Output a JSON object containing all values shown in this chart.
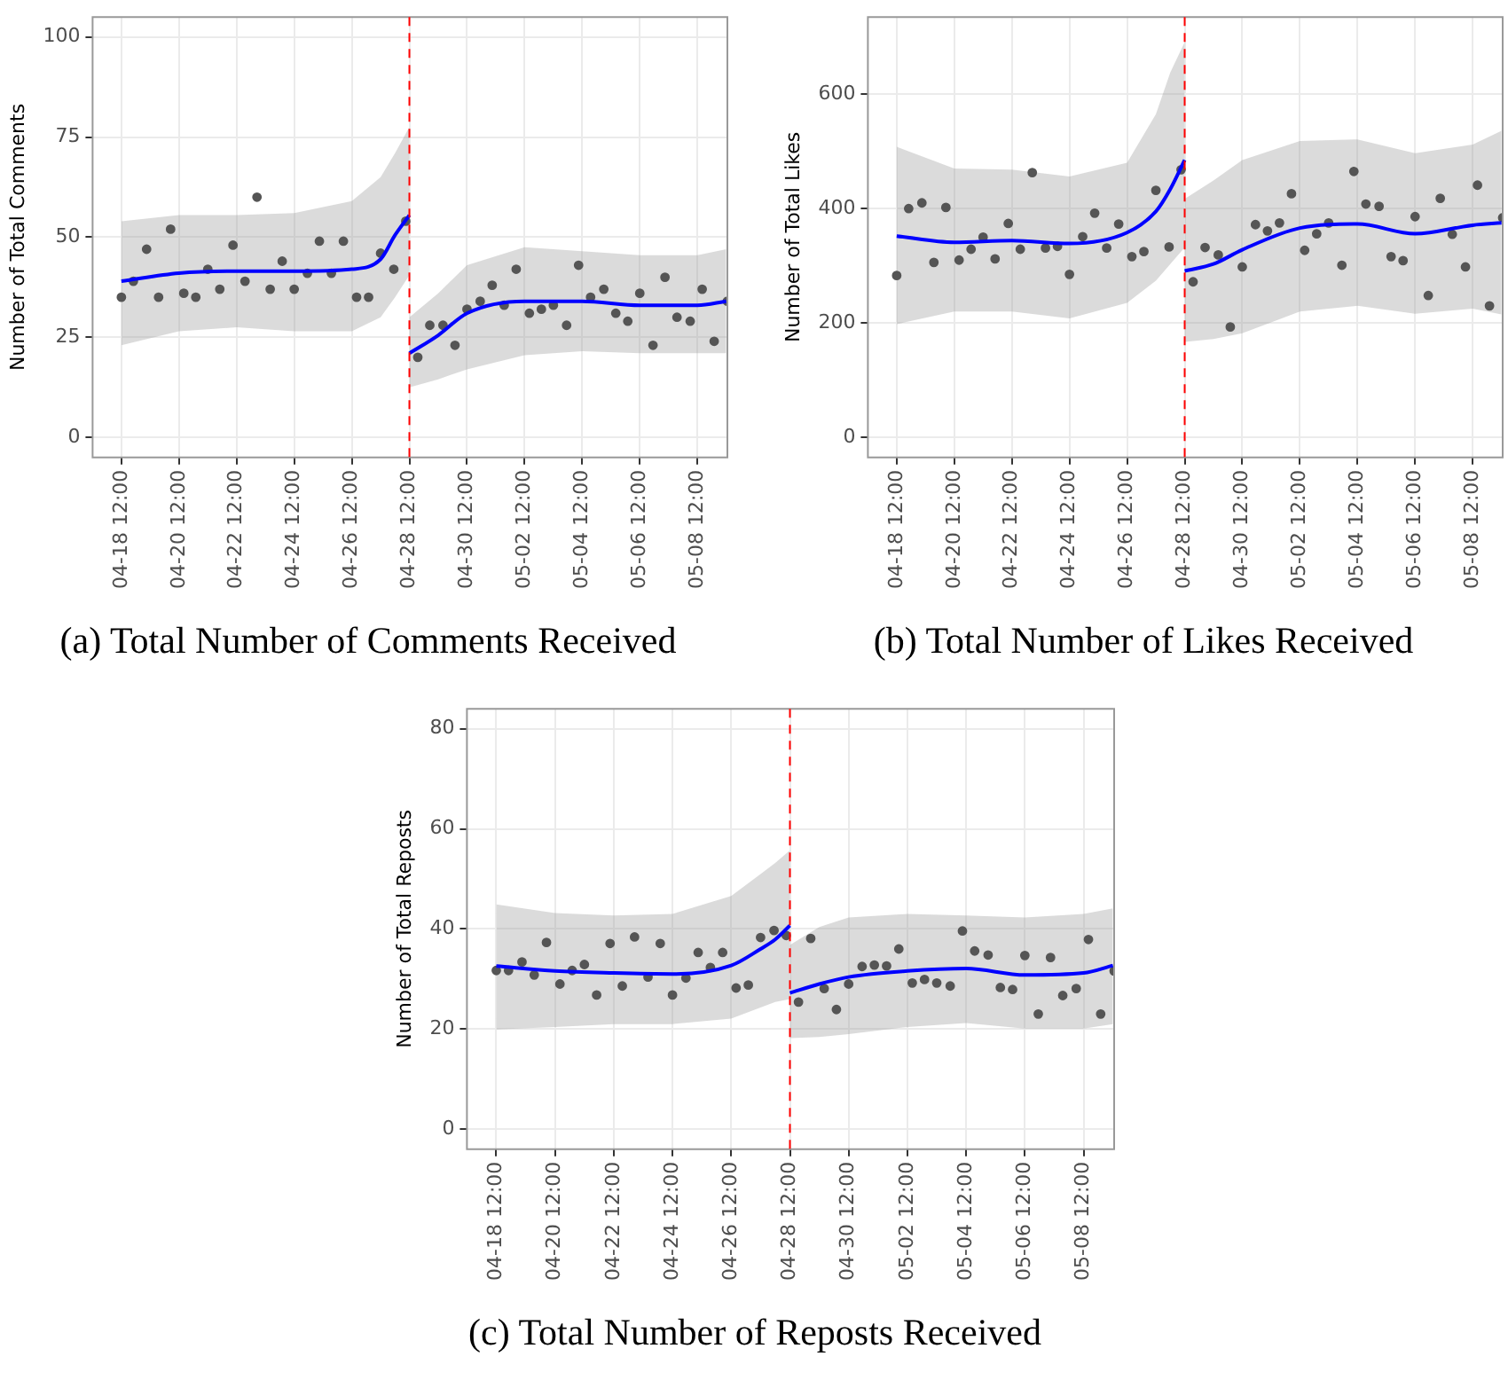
{
  "chart_data": [
    {
      "type": "scatter",
      "title": "(a) Total Number of Comments Received",
      "ylabel": "Number of Total Comments",
      "x": [
        "--04-18T12:00",
        "--04-18T22:00",
        "--04-19T09:00",
        "--04-19T19:00",
        "--04-20T05:00",
        "--04-20T16:00",
        "--04-21T02:00",
        "--04-21T12:00",
        "--04-21T22:00",
        "--04-22T09:00",
        "--04-22T19:00",
        "--04-23T05:00",
        "--04-23T16:00",
        "--04-24T02:00",
        "--04-24T12:00",
        "--04-24T23:00",
        "--04-25T09:00",
        "--04-25T19:00",
        "--04-26T05:00",
        "--04-26T16:00",
        "--04-27T02:00",
        "--04-27T12:00",
        "--04-27T23:00",
        "--04-28T09:00",
        "--04-28T19:00",
        "--04-29T05:00",
        "--04-29T16:00",
        "--04-30T02:00",
        "--04-30T12:00",
        "--04-30T23:00",
        "--05-01T09:00",
        "--05-01T19:00",
        "--05-02T05:00",
        "--05-02T16:00",
        "--05-03T02:00",
        "--05-03T12:00",
        "--05-03T23:00",
        "--05-04T09:00",
        "--05-04T19:00",
        "--05-05T06:00",
        "--05-05T16:00",
        "--05-06T02:00",
        "--05-06T12:00",
        "--05-06T23:00",
        "--05-07T09:00",
        "--05-07T19:00",
        "--05-08T06:00",
        "--05-08T16:00",
        "--05-09T02:00",
        "--05-09T13:00"
      ],
      "series": [
        {
          "color": "#555555",
          "marker": "circle",
          "values": [
            35,
            39,
            47,
            35,
            52,
            36,
            35,
            42,
            37,
            48,
            39,
            60,
            37,
            44,
            37,
            41,
            49,
            41,
            49,
            35,
            35,
            46,
            42,
            54,
            20,
            28,
            28,
            23,
            32,
            34,
            38,
            33,
            42,
            31,
            32,
            33,
            28,
            43,
            35,
            37,
            31,
            29,
            36,
            23,
            40,
            30,
            29,
            37,
            24,
            34
          ]
        },
        {
          "type": "line",
          "color": "#0000ff",
          "marker": "none",
          "x": [
            "--04-18T12:00",
            "--04-20T12:00",
            "--04-22T12:00",
            "--04-24T12:00",
            "--04-26T12:00",
            "--04-27T12:00",
            "--04-28T00:00",
            "--04-28T12:00"
          ],
          "values": [
            39,
            41,
            41.5,
            41.5,
            42,
            44.5,
            50.5,
            55.5
          ],
          "lower": [
            23,
            26.5,
            27.5,
            26.5,
            26.5,
            30,
            35,
            40.5
          ],
          "upper": [
            54,
            55.5,
            55.5,
            56,
            59,
            65,
            71,
            77.5
          ]
        },
        {
          "type": "line",
          "color": "#0000ff",
          "marker": "none",
          "x": [
            "--04-28T12:00",
            "--04-29T12:00",
            "--04-30T12:00",
            "--05-02T12:00",
            "--05-04T12:00",
            "--05-06T12:00",
            "--05-08T12:00",
            "--05-09T12:00"
          ],
          "values": [
            21,
            25.5,
            31,
            34,
            34,
            33,
            33,
            34
          ],
          "lower": [
            12.5,
            14.5,
            17,
            20.5,
            21.5,
            21,
            21,
            21
          ],
          "upper": [
            30,
            36,
            43,
            47.5,
            46.5,
            45.5,
            45.5,
            47
          ]
        }
      ],
      "xlim": [
        "--04-17T12:00",
        "--05-09T13:00"
      ],
      "xticks": [
        {
          "value": "--04-18T12:00",
          "label": "04-18 12:00"
        },
        {
          "value": "--04-20T12:00",
          "label": "04-20 12:00"
        },
        {
          "value": "--04-22T12:00",
          "label": "04-22 12:00"
        },
        {
          "value": "--04-24T12:00",
          "label": "04-24 12:00"
        },
        {
          "value": "--04-26T12:00",
          "label": "04-26 12:00"
        },
        {
          "value": "--04-28T12:00",
          "label": "04-28 12:00"
        },
        {
          "value": "--04-30T12:00",
          "label": "04-30 12:00"
        },
        {
          "value": "--05-02T12:00",
          "label": "05-02 12:00"
        },
        {
          "value": "--05-04T12:00",
          "label": "05-04 12:00"
        },
        {
          "value": "--05-06T12:00",
          "label": "05-06 12:00"
        },
        {
          "value": "--05-08T12:00",
          "label": "05-08 12:00"
        }
      ],
      "ylim": [
        -5,
        105
      ],
      "yticks": [
        0,
        25,
        50,
        75,
        100
      ],
      "grid": true,
      "ref_lines": [
        {
          "axis": "x",
          "value": "--04-28T12:00",
          "color": "#ff0000",
          "line_style": "dashed"
        }
      ]
    },
    {
      "type": "scatter",
      "title": "(b) Total Number of Likes Received",
      "ylabel": "Number of Total Likes",
      "x": [
        "--04-18T12:00",
        "--04-18T22:00",
        "--04-19T09:00",
        "--04-19T19:00",
        "--04-20T05:00",
        "--04-20T16:00",
        "--04-21T02:00",
        "--04-21T12:00",
        "--04-21T22:00",
        "--04-22T09:00",
        "--04-22T19:00",
        "--04-23T05:00",
        "--04-23T16:00",
        "--04-24T02:00",
        "--04-24T12:00",
        "--04-24T23:00",
        "--04-25T09:00",
        "--04-25T19:00",
        "--04-26T05:00",
        "--04-26T16:00",
        "--04-27T02:00",
        "--04-27T12:00",
        "--04-27T23:00",
        "--04-28T09:00",
        "--04-28T19:00",
        "--04-29T05:00",
        "--04-29T16:00",
        "--04-30T02:00",
        "--04-30T12:00",
        "--04-30T23:00",
        "--05-01T09:00",
        "--05-01T19:00",
        "--05-02T05:00",
        "--05-02T16:00",
        "--05-03T02:00",
        "--05-03T12:00",
        "--05-03T23:00",
        "--05-04T09:00",
        "--05-04T19:00",
        "--05-05T06:00",
        "--05-05T16:00",
        "--05-06T02:00",
        "--05-06T12:00",
        "--05-06T23:00",
        "--05-07T09:00",
        "--05-07T19:00",
        "--05-08T06:00",
        "--05-08T16:00",
        "--05-09T02:00",
        "--05-09T13:00"
      ],
      "series": [
        {
          "color": "#555555",
          "marker": "circle",
          "values": [
            283,
            400,
            410,
            306,
            402,
            310,
            329,
            350,
            312,
            374,
            329,
            463,
            331,
            334,
            285,
            351,
            392,
            331,
            373,
            316,
            325,
            432,
            333,
            468,
            272,
            332,
            319,
            193,
            298,
            372,
            361,
            375,
            426,
            327,
            356,
            375,
            301,
            465,
            408,
            404,
            316,
            309,
            386,
            248,
            418,
            355,
            298,
            441,
            230,
            384
          ]
        },
        {
          "type": "line",
          "color": "#0000ff",
          "marker": "none",
          "x": [
            "--04-18T12:00",
            "--04-20T12:00",
            "--04-22T12:00",
            "--04-24T12:00",
            "--04-26T12:00",
            "--04-27T12:00",
            "--04-28T00:00",
            "--04-28T12:00"
          ],
          "values": [
            352,
            341,
            344,
            339,
            358,
            395,
            434,
            485
          ],
          "lower": [
            198,
            220,
            220,
            208,
            235,
            274,
            303,
            332
          ],
          "upper": [
            508,
            470,
            468,
            456,
            480,
            565,
            638,
            691
          ]
        },
        {
          "type": "line",
          "color": "#0000ff",
          "marker": "none",
          "x": [
            "--04-28T12:00",
            "--04-29T12:00",
            "--04-30T12:00",
            "--05-02T12:00",
            "--05-04T12:00",
            "--05-06T12:00",
            "--05-08T12:00",
            "--05-09T12:00"
          ],
          "values": [
            291,
            303,
            328,
            366,
            373,
            356,
            371,
            375
          ],
          "lower": [
            167,
            172,
            182,
            220,
            230,
            216,
            225,
            215
          ],
          "upper": [
            417,
            449,
            485,
            518,
            521,
            497,
            512,
            536
          ]
        }
      ],
      "xlim": [
        "--04-17T12:00",
        "--05-09T13:00"
      ],
      "xticks": [
        {
          "value": "--04-18T12:00",
          "label": "04-18 12:00"
        },
        {
          "value": "--04-20T12:00",
          "label": "04-20 12:00"
        },
        {
          "value": "--04-22T12:00",
          "label": "04-22 12:00"
        },
        {
          "value": "--04-24T12:00",
          "label": "04-24 12:00"
        },
        {
          "value": "--04-26T12:00",
          "label": "04-26 12:00"
        },
        {
          "value": "--04-28T12:00",
          "label": "04-28 12:00"
        },
        {
          "value": "--04-30T12:00",
          "label": "04-30 12:00"
        },
        {
          "value": "--05-02T12:00",
          "label": "05-02 12:00"
        },
        {
          "value": "--05-04T12:00",
          "label": "05-04 12:00"
        },
        {
          "value": "--05-06T12:00",
          "label": "05-06 12:00"
        },
        {
          "value": "--05-08T12:00",
          "label": "05-08 12:00"
        }
      ],
      "ylim": [
        -35,
        735
      ],
      "yticks": [
        0,
        200,
        400,
        600
      ],
      "grid": true,
      "ref_lines": [
        {
          "axis": "x",
          "value": "--04-28T12:00",
          "color": "#ff0000",
          "line_style": "dashed"
        }
      ]
    },
    {
      "type": "scatter",
      "title": "(c) Total Number of Reposts Received",
      "ylabel": "Number of Total Reposts",
      "x": [
        "--04-18T12:00",
        "--04-18T22:00",
        "--04-19T09:00",
        "--04-19T19:00",
        "--04-20T05:00",
        "--04-20T16:00",
        "--04-21T02:00",
        "--04-21T12:00",
        "--04-21T22:00",
        "--04-22T09:00",
        "--04-22T19:00",
        "--04-23T05:00",
        "--04-23T16:00",
        "--04-24T02:00",
        "--04-24T12:00",
        "--04-24T23:00",
        "--04-25T09:00",
        "--04-25T19:00",
        "--04-26T05:00",
        "--04-26T16:00",
        "--04-27T02:00",
        "--04-27T12:00",
        "--04-27T23:00",
        "--04-28T09:00",
        "--04-28T19:00",
        "--04-29T05:00",
        "--04-29T16:00",
        "--04-30T02:00",
        "--04-30T12:00",
        "--04-30T23:00",
        "--05-01T09:00",
        "--05-01T19:00",
        "--05-02T05:00",
        "--05-02T16:00",
        "--05-03T02:00",
        "--05-03T12:00",
        "--05-03T23:00",
        "--05-04T09:00",
        "--05-04T19:00",
        "--05-05T06:00",
        "--05-05T16:00",
        "--05-06T02:00",
        "--05-06T12:00",
        "--05-06T23:00",
        "--05-07T09:00",
        "--05-07T19:00",
        "--05-08T06:00",
        "--05-08T16:00",
        "--05-09T02:00",
        "--05-09T13:00"
      ],
      "series": [
        {
          "color": "#555555",
          "marker": "circle",
          "values": [
            31.7,
            31.7,
            33.4,
            30.8,
            37.3,
            29,
            31.7,
            32.9,
            26.8,
            37.1,
            28.6,
            38.4,
            30.4,
            37.1,
            26.8,
            30.2,
            35.3,
            32.3,
            35.3,
            28.2,
            28.8,
            38.3,
            39.7,
            38.7,
            25.4,
            38.1,
            28.1,
            23.9,
            29,
            32.5,
            32.8,
            32.6,
            36,
            29.2,
            29.9,
            29.2,
            28.6,
            39.6,
            35.6,
            34.8,
            28.3,
            27.9,
            34.7,
            23,
            34.3,
            26.7,
            28.1,
            37.9,
            23,
            31.6
          ]
        },
        {
          "type": "line",
          "color": "#0000ff",
          "marker": "none",
          "x": [
            "--04-18T12:00",
            "--04-20T12:00",
            "--04-22T12:00",
            "--04-24T12:00",
            "--04-26T12:00",
            "--04-27T12:00",
            "--04-28T00:00",
            "--04-28T12:00"
          ],
          "values": [
            32.6,
            31.6,
            31.2,
            31,
            32.7,
            36,
            37.9,
            40.7
          ],
          "lower": [
            19.9,
            20.4,
            21,
            21,
            22.1,
            24.3,
            25.4,
            26
          ],
          "upper": [
            44.9,
            43.2,
            42.7,
            43,
            46.6,
            51,
            53.2,
            55.7
          ]
        },
        {
          "type": "line",
          "color": "#0000ff",
          "marker": "none",
          "x": [
            "--04-28T12:00",
            "--04-29T12:00",
            "--04-30T12:00",
            "--05-02T12:00",
            "--05-04T12:00",
            "--05-06T12:00",
            "--05-08T12:00",
            "--05-09T12:00"
          ],
          "values": [
            27.2,
            29,
            30.4,
            31.6,
            32.1,
            30.8,
            31.2,
            32.7
          ],
          "lower": [
            18.2,
            18.4,
            19,
            20.4,
            21.2,
            20.1,
            20.1,
            21
          ],
          "upper": [
            36.8,
            40.4,
            42.3,
            43,
            42.7,
            42.3,
            43,
            44.1
          ]
        }
      ],
      "xlim": [
        "--04-17T12:00",
        "--05-09T13:00"
      ],
      "xticks": [
        {
          "value": "--04-18T12:00",
          "label": "04-18 12:00"
        },
        {
          "value": "--04-20T12:00",
          "label": "04-20 12:00"
        },
        {
          "value": "--04-22T12:00",
          "label": "04-22 12:00"
        },
        {
          "value": "--04-24T12:00",
          "label": "04-24 12:00"
        },
        {
          "value": "--04-26T12:00",
          "label": "04-26 12:00"
        },
        {
          "value": "--04-28T12:00",
          "label": "04-28 12:00"
        },
        {
          "value": "--04-30T12:00",
          "label": "04-30 12:00"
        },
        {
          "value": "--05-02T12:00",
          "label": "05-02 12:00"
        },
        {
          "value": "--05-04T12:00",
          "label": "05-04 12:00"
        },
        {
          "value": "--05-06T12:00",
          "label": "05-06 12:00"
        },
        {
          "value": "--05-08T12:00",
          "label": "05-08 12:00"
        }
      ],
      "ylim": [
        -4,
        84
      ],
      "yticks": [
        0,
        20,
        40,
        60,
        80
      ],
      "grid": true,
      "ref_lines": [
        {
          "axis": "x",
          "value": "--04-28T12:00",
          "color": "#ff0000",
          "line_style": "dashed"
        }
      ]
    }
  ]
}
